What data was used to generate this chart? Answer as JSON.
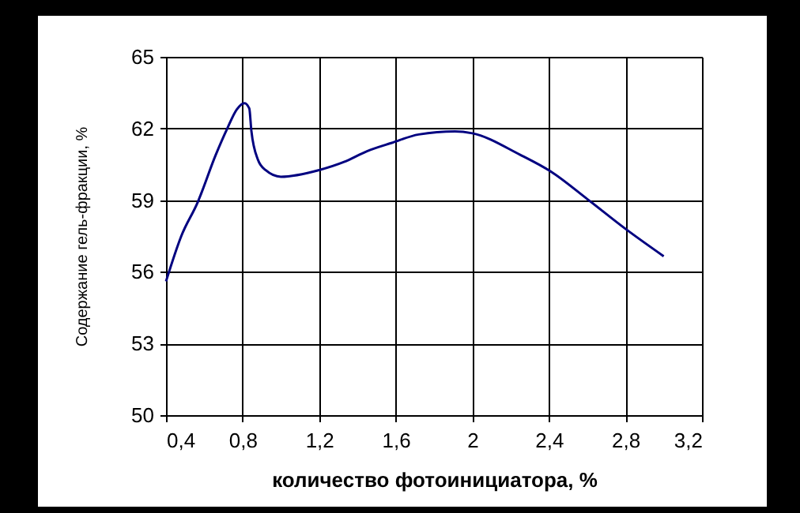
{
  "chart_data": {
    "type": "line",
    "xlabel": "количество фотоинициатора, %",
    "ylabel": "Содержание гель-фракции, %",
    "series": [
      {
        "color": "#000080",
        "x": [
          0.4,
          0.48,
          0.565,
          0.66,
          0.72,
          0.77,
          0.81,
          0.835,
          0.846,
          0.88,
          0.92,
          1.0,
          1.2,
          1.33,
          1.45,
          1.58,
          1.72,
          1.91,
          2.0,
          2.25,
          2.41,
          2.6,
          2.8,
          3.0
        ],
        "values": [
          55.6,
          57.5,
          58.9,
          60.9,
          62.0,
          62.8,
          63.06,
          62.84,
          61.9,
          60.7,
          60.26,
          59.98,
          60.26,
          60.6,
          61.05,
          61.4,
          61.75,
          61.88,
          61.8,
          60.9,
          60.2,
          59.05,
          57.8,
          56.65
        ]
      }
    ],
    "xlim": [
      0.4,
      3.2
    ],
    "xticks": [
      {
        "value": 0.4,
        "label": "0,4"
      },
      {
        "value": 0.8,
        "label": "0,8"
      },
      {
        "value": 1.2,
        "label": "1,2"
      },
      {
        "value": 1.6,
        "label": "1,6"
      },
      {
        "value": 2,
        "label": "2"
      },
      {
        "value": 2.4,
        "label": "2,4"
      },
      {
        "value": 2.8,
        "label": "2,8"
      },
      {
        "value": 3.2,
        "label": "3,2"
      }
    ],
    "ylim": [
      50,
      65
    ],
    "yticks": [
      50,
      53,
      56,
      59,
      62,
      65
    ],
    "grid": true,
    "marker": "none"
  }
}
